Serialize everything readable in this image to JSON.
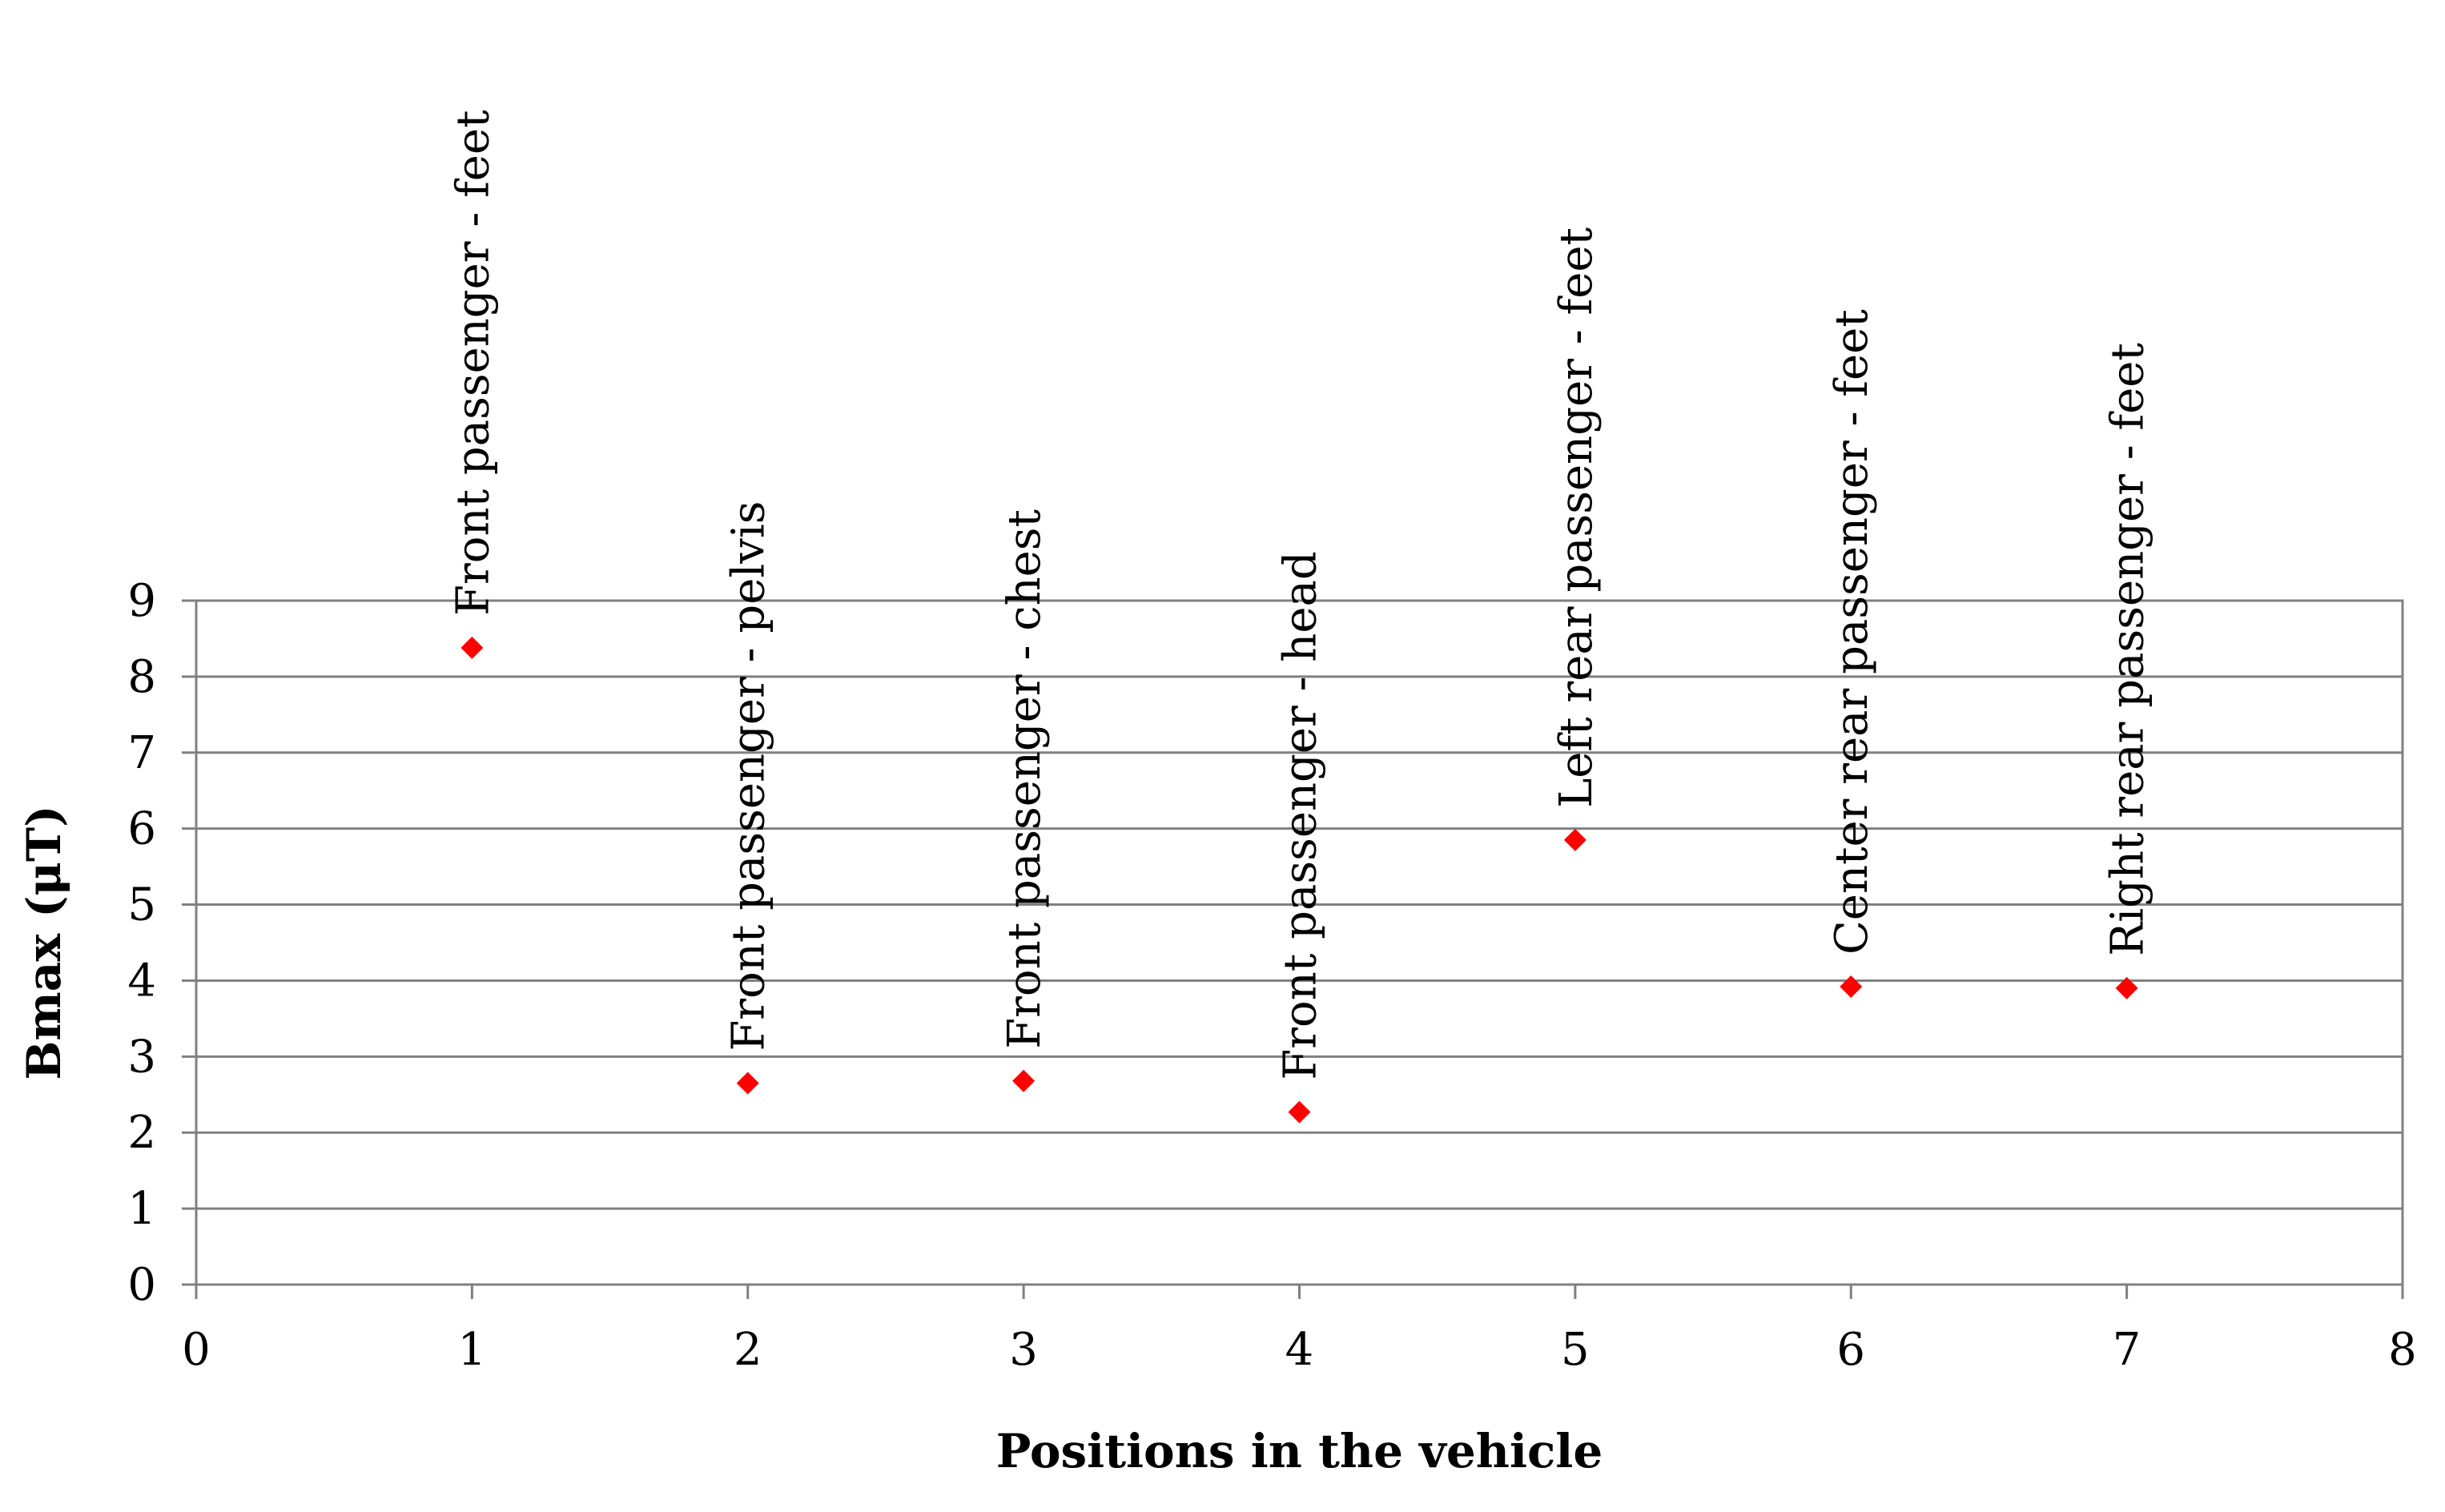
{
  "chart_data": {
    "type": "scatter",
    "title": "",
    "xlabel": "Positions in the vehicle",
    "ylabel": "Bmax (μT)",
    "xlim": [
      0,
      8
    ],
    "ylim": [
      0,
      9
    ],
    "x_ticks": [
      "0",
      "1",
      "2",
      "3",
      "4",
      "5",
      "6",
      "7",
      "8"
    ],
    "y_ticks": [
      "0",
      "1",
      "2",
      "3",
      "4",
      "5",
      "6",
      "7",
      "8",
      "9"
    ],
    "grid": "horizontal",
    "marker": "diamond",
    "marker_color": "#ff0000",
    "points": [
      {
        "x": 1,
        "y": 8.38,
        "label": "Front passenger - feet"
      },
      {
        "x": 2,
        "y": 2.65,
        "label": "Front passenger - pelvis"
      },
      {
        "x": 3,
        "y": 2.68,
        "label": "Front passenger - chest"
      },
      {
        "x": 4,
        "y": 2.27,
        "label": "Front passenger - head"
      },
      {
        "x": 5,
        "y": 5.85,
        "label": "Left rear passenger - feet"
      },
      {
        "x": 6,
        "y": 3.92,
        "label": "Center rear passenger - feet"
      },
      {
        "x": 7,
        "y": 3.9,
        "label": "Right rear passenger - feet"
      }
    ]
  }
}
